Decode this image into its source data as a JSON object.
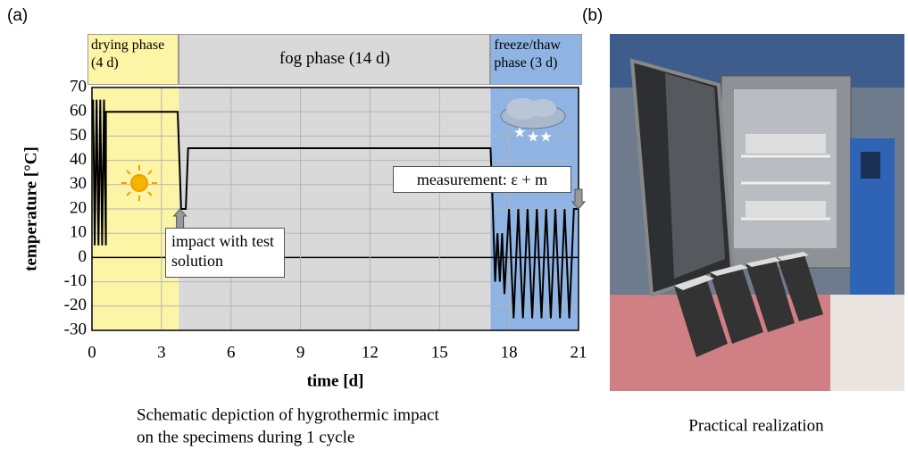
{
  "chart_data": {
    "type": "line",
    "panel_labels": [
      "(a)",
      "(b)"
    ],
    "xlabel": "time [d]",
    "ylabel": "temperature [°C]",
    "xlim": [
      0,
      21
    ],
    "ylim": [
      -30,
      70
    ],
    "xticks": [
      0,
      3,
      6,
      9,
      12,
      15,
      18,
      21
    ],
    "yticks": [
      -30,
      -20,
      -10,
      0,
      10,
      20,
      30,
      40,
      50,
      60,
      70
    ],
    "grid": true,
    "line_color": "#000000",
    "x": [
      0.05,
      0.12,
      0.2,
      0.28,
      0.36,
      0.44,
      0.52,
      0.6,
      0.6,
      3.7,
      3.85,
      4.05,
      4.15,
      17.2,
      17.3,
      17.4,
      17.5,
      17.6,
      17.7,
      17.8,
      18.0,
      18.2,
      18.4,
      18.6,
      18.8,
      19.0,
      19.2,
      19.4,
      19.6,
      19.8,
      20.0,
      20.2,
      20.4,
      20.6,
      20.8,
      21.0
    ],
    "values": [
      65,
      5,
      65,
      5,
      65,
      5,
      65,
      5,
      60,
      60,
      20,
      20,
      45,
      45,
      20,
      -10,
      10,
      -10,
      10,
      -15,
      20,
      -25,
      20,
      -25,
      20,
      -25,
      20,
      -25,
      20,
      -25,
      20,
      -25,
      20,
      -25,
      20,
      20
    ],
    "phases": [
      {
        "label": "drying phase (4 d)",
        "start": 0,
        "end": 3.75,
        "color": "#fdf5a6"
      },
      {
        "label": "fog phase (14 d)",
        "start": 3.75,
        "end": 17.2,
        "color": "#d9d9d9"
      },
      {
        "label": "freeze/thaw phase (3 d)",
        "start": 17.2,
        "end": 21,
        "color": "#8fb4e3"
      }
    ],
    "annotations": [
      {
        "text": "impact with test solution",
        "x": 3.8,
        "y": 20
      },
      {
        "text": "measurement: ε + m",
        "x": 21,
        "y": 20
      }
    ],
    "caption": [
      "Schematic depiction of hygrothermic impact",
      "on the specimens during 1 cycle"
    ],
    "photo_caption": "Practical realization"
  }
}
